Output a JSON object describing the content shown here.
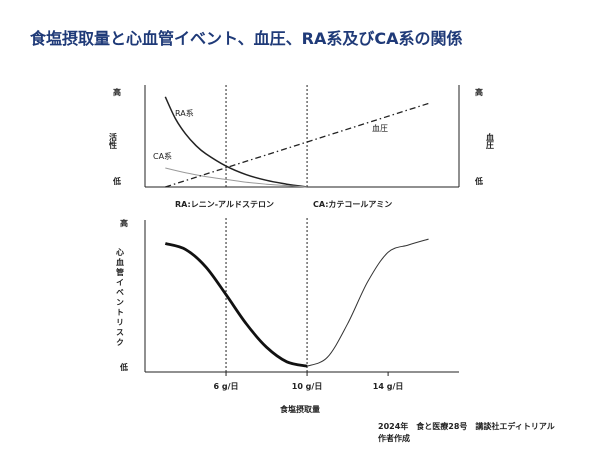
{
  "title": "食塩摂取量と心血管イベント、血圧、RA系及びCA系の関係",
  "source": {
    "line1": "2024年　食と医療28号　講談社エディトリアル",
    "line2": "作者作成"
  },
  "chart_data": [
    {
      "type": "line",
      "x": [
        3,
        4,
        5,
        6,
        7,
        8,
        9,
        10
      ],
      "left_ylabel": "活性",
      "right_ylabel": "血圧",
      "left_ticks": {
        "high": "高",
        "low": "低"
      },
      "right_ticks": {
        "high": "高",
        "low": "低"
      },
      "ylim": [
        0,
        1
      ],
      "series": [
        {
          "name": "RA系",
          "style": "solid",
          "color": "#222222",
          "x": [
            3,
            3.5,
            4,
            4.5,
            5,
            6,
            7,
            8,
            9,
            10
          ],
          "values": [
            0.95,
            0.72,
            0.56,
            0.44,
            0.35,
            0.22,
            0.13,
            0.07,
            0.03,
            0.0
          ]
        },
        {
          "name": "CA系",
          "style": "solid",
          "color": "#9a9a9a",
          "x": [
            3,
            4,
            5,
            6,
            7,
            8,
            9,
            10
          ],
          "values": [
            0.2,
            0.15,
            0.11,
            0.08,
            0.05,
            0.03,
            0.015,
            0.0
          ]
        },
        {
          "name": "血圧",
          "style": "dashdot",
          "color": "#222222",
          "x": [
            3,
            4,
            5,
            6,
            7,
            8,
            9,
            10,
            11,
            12,
            13,
            14,
            15,
            16
          ],
          "values": [
            0.0,
            0.06,
            0.12,
            0.18,
            0.24,
            0.3,
            0.36,
            0.43,
            0.5,
            0.57,
            0.64,
            0.72,
            0.8,
            0.88
          ]
        }
      ],
      "vlines": [
        6,
        10
      ],
      "annotations": [
        {
          "text": "RA:レニン-アルドステロン",
          "x": 3.4
        },
        {
          "text": "CA:カテコールアミン",
          "x": 10.6
        }
      ]
    },
    {
      "type": "line",
      "xlabel": "食塩摂取量",
      "ylabel": "心血管イベントリスク",
      "y_ticks": {
        "high": "高",
        "low": "低"
      },
      "x_ticks": [
        {
          "value": 6,
          "label": "6 g/日"
        },
        {
          "value": 10,
          "label": "10 g/日"
        },
        {
          "value": 14,
          "label": "14 g/日"
        }
      ],
      "xlim": [
        2,
        17.5
      ],
      "ylim": [
        0,
        1
      ],
      "vlines": [
        6,
        10
      ],
      "series": [
        {
          "style": "thick",
          "color": "#111111",
          "x": [
            3,
            4,
            5,
            6,
            7,
            8,
            9,
            10
          ],
          "values": [
            0.88,
            0.84,
            0.72,
            0.53,
            0.33,
            0.17,
            0.07,
            0.04
          ]
        },
        {
          "style": "thin",
          "color": "#333333",
          "x": [
            10,
            11,
            12,
            13,
            14,
            15,
            16
          ],
          "values": [
            0.04,
            0.1,
            0.33,
            0.62,
            0.82,
            0.87,
            0.91
          ]
        }
      ]
    }
  ]
}
